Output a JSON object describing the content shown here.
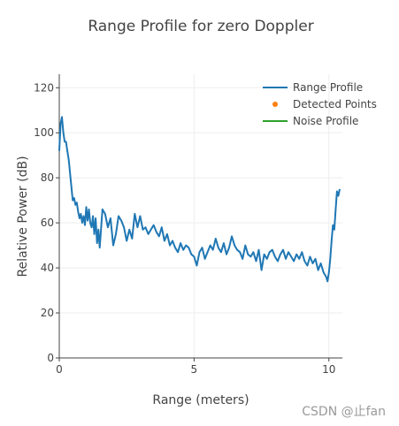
{
  "chart_data": {
    "type": "line",
    "title": "Range Profile for zero Doppler",
    "xlabel": "Range (meters)",
    "ylabel": "Relative Power (dB)",
    "xlim": [
      0,
      10.5
    ],
    "ylim": [
      0,
      126
    ],
    "xticks": [
      0,
      5,
      10
    ],
    "yticks": [
      0,
      20,
      40,
      60,
      80,
      100,
      120
    ],
    "grid": true,
    "legend_position": "top-right",
    "series": [
      {
        "name": "Range Profile",
        "color": "#1f77b4",
        "marker": "line",
        "x": [
          0.0,
          0.05,
          0.1,
          0.15,
          0.2,
          0.25,
          0.3,
          0.35,
          0.4,
          0.45,
          0.5,
          0.55,
          0.6,
          0.65,
          0.7,
          0.75,
          0.8,
          0.85,
          0.9,
          0.95,
          1.0,
          1.05,
          1.1,
          1.15,
          1.2,
          1.25,
          1.3,
          1.35,
          1.4,
          1.45,
          1.5,
          1.6,
          1.7,
          1.8,
          1.9,
          2.0,
          2.1,
          2.2,
          2.3,
          2.4,
          2.5,
          2.6,
          2.7,
          2.8,
          2.9,
          3.0,
          3.1,
          3.2,
          3.3,
          3.4,
          3.5,
          3.6,
          3.7,
          3.8,
          3.9,
          4.0,
          4.1,
          4.2,
          4.3,
          4.4,
          4.5,
          4.6,
          4.7,
          4.8,
          4.9,
          5.0,
          5.1,
          5.2,
          5.3,
          5.4,
          5.5,
          5.6,
          5.7,
          5.8,
          5.9,
          6.0,
          6.1,
          6.2,
          6.3,
          6.4,
          6.5,
          6.6,
          6.7,
          6.8,
          6.9,
          7.0,
          7.1,
          7.2,
          7.3,
          7.4,
          7.5,
          7.6,
          7.7,
          7.8,
          7.9,
          8.0,
          8.1,
          8.2,
          8.3,
          8.4,
          8.5,
          8.6,
          8.7,
          8.8,
          8.9,
          9.0,
          9.1,
          9.2,
          9.3,
          9.4,
          9.5,
          9.6,
          9.7,
          9.8,
          9.9,
          9.95,
          10.0,
          10.05,
          10.1,
          10.15,
          10.2,
          10.25,
          10.3,
          10.35,
          10.4
        ],
        "y": [
          92,
          104,
          107,
          100,
          96,
          96,
          92,
          88,
          82,
          76,
          70,
          71,
          68,
          69,
          65,
          62,
          64,
          60,
          63,
          59,
          67,
          61,
          66,
          60,
          58,
          63,
          55,
          62,
          51,
          57,
          49,
          66,
          64,
          58,
          62,
          50,
          55,
          63,
          61,
          58,
          52,
          57,
          53,
          64,
          58,
          63,
          57,
          58,
          55,
          57,
          59,
          56,
          54,
          58,
          52,
          55,
          50,
          52,
          49,
          47,
          51,
          48,
          50,
          49,
          46,
          45,
          41,
          47,
          49,
          44,
          47,
          50,
          48,
          53,
          49,
          47,
          51,
          46,
          49,
          54,
          50,
          48,
          47,
          44,
          50,
          46,
          45,
          47,
          43,
          48,
          39,
          46,
          44,
          47,
          48,
          45,
          43,
          46,
          48,
          44,
          47,
          45,
          43,
          46,
          44,
          47,
          43,
          41,
          45,
          42,
          44,
          39,
          42,
          38,
          36,
          34,
          38,
          44,
          52,
          59,
          57,
          66,
          74,
          72,
          75
        ]
      },
      {
        "name": "Detected Points",
        "color": "#ff7f0e",
        "marker": "dot",
        "x": [],
        "y": []
      },
      {
        "name": "Noise Profile",
        "color": "#2ca02c",
        "marker": "line",
        "x": [],
        "y": []
      }
    ]
  },
  "watermark": "CSDN @止fan"
}
